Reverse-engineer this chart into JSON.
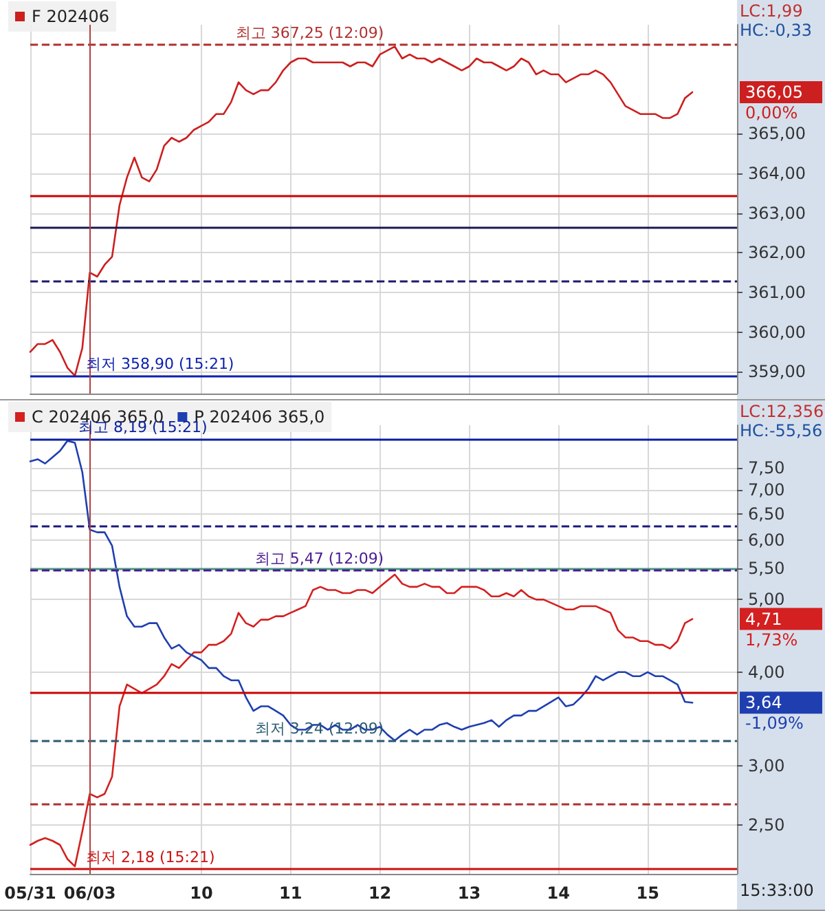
{
  "chart_data": [
    {
      "type": "line",
      "categories": [
        "05/31",
        null,
        null,
        null,
        null,
        null,
        null,
        null,
        "06/03",
        null,
        null,
        null,
        null,
        null,
        null,
        null,
        null,
        null,
        null,
        null,
        null,
        null,
        null,
        "10",
        null,
        null,
        null,
        null,
        null,
        null,
        null,
        null,
        null,
        null,
        null,
        "11",
        null,
        null,
        null,
        null,
        null,
        null,
        null,
        null,
        null,
        null,
        null,
        "12",
        null,
        null,
        null,
        null,
        null,
        null,
        null,
        null,
        null,
        null,
        null,
        "13",
        null,
        null,
        null,
        null,
        null,
        null,
        null,
        null,
        null,
        null,
        null,
        "14",
        null,
        null,
        null,
        null,
        null,
        null,
        null,
        null,
        null,
        null,
        null,
        "15",
        null,
        null,
        null,
        null,
        null,
        null,
        null,
        null,
        null,
        null,
        null,
        null
      ],
      "series": [
        {
          "name": "F 202406",
          "color": "#cc1f1f",
          "values": [
            359.5,
            359.7,
            359.7,
            359.8,
            359.5,
            359.1,
            358.9,
            359.6,
            361.5,
            361.4,
            361.7,
            361.9,
            363.2,
            363.9,
            364.4,
            363.9,
            363.8,
            364.1,
            364.7,
            364.9,
            364.8,
            364.9,
            365.1,
            365.2,
            365.3,
            365.5,
            365.5,
            365.8,
            366.3,
            366.1,
            366.0,
            366.1,
            366.1,
            366.3,
            366.6,
            366.8,
            366.9,
            366.9,
            366.8,
            366.8,
            366.8,
            366.8,
            366.8,
            366.7,
            366.8,
            366.8,
            366.7,
            367.0,
            367.1,
            367.2,
            366.9,
            367.0,
            366.9,
            366.9,
            366.8,
            366.9,
            366.8,
            366.7,
            366.6,
            366.7,
            366.9,
            366.8,
            366.8,
            366.7,
            366.6,
            366.7,
            366.9,
            366.8,
            366.5,
            366.6,
            366.5,
            366.5,
            366.3,
            366.4,
            366.5,
            366.5,
            366.6,
            366.5,
            366.3,
            366.0,
            365.7,
            365.6,
            365.5,
            365.5,
            365.5,
            365.4,
            365.4,
            365.5,
            365.9,
            366.05,
            null,
            null,
            null,
            null,
            null,
            null
          ]
        }
      ],
      "ylim": [
        358.45,
        367.75
      ],
      "yticks": [
        {
          "value": 359,
          "label": "359,00"
        },
        {
          "value": 360,
          "label": "360,00"
        },
        {
          "value": 361,
          "label": "361,00"
        },
        {
          "value": 362,
          "label": "362,00"
        },
        {
          "value": 363,
          "label": "363,00"
        },
        {
          "value": 364,
          "label": "364,00"
        },
        {
          "value": 365,
          "label": "365,00"
        }
      ],
      "tick_labels": "y",
      "grid": true,
      "legend": "top left",
      "marker": "none",
      "line_style": "solid",
      "ref_lines": [
        {
          "axis": "y",
          "value": 367.25,
          "label": "최고 367,25 (12:09)",
          "color": "#b03030",
          "line_style": "dashed"
        },
        {
          "axis": "y",
          "value": 363.45,
          "color": "#cc0000",
          "line_style": "solid"
        },
        {
          "axis": "y",
          "value": 362.65,
          "color": "#1a1a50",
          "line_style": "solid"
        },
        {
          "axis": "y",
          "value": 361.3,
          "color": "#1a1a70",
          "line_style": "dashed"
        },
        {
          "axis": "y",
          "value": 358.9,
          "label": "최저 358,90 (15:21)",
          "color": "#0a1fb0",
          "line_style": "solid"
        },
        {
          "axis": "x",
          "value": "06/03",
          "color": "#b04040",
          "line_style": "solid"
        }
      ],
      "annotations": [
        "LC:1,99",
        "HC:-0,33",
        "366,05",
        "0,00%"
      ]
    },
    {
      "type": "line",
      "categories": [
        "05/31",
        null,
        null,
        null,
        null,
        null,
        null,
        null,
        "06/03",
        null,
        null,
        null,
        null,
        null,
        null,
        null,
        null,
        null,
        null,
        null,
        null,
        null,
        null,
        "10",
        null,
        null,
        null,
        null,
        null,
        null,
        null,
        null,
        null,
        null,
        null,
        "11",
        null,
        null,
        null,
        null,
        null,
        null,
        null,
        null,
        null,
        null,
        null,
        "12",
        null,
        null,
        null,
        null,
        null,
        null,
        null,
        null,
        null,
        null,
        null,
        "13",
        null,
        null,
        null,
        null,
        null,
        null,
        null,
        null,
        null,
        null,
        null,
        "14",
        null,
        null,
        null,
        null,
        null,
        null,
        null,
        null,
        null,
        null,
        null,
        "15",
        null,
        null,
        null,
        null,
        null,
        null,
        null,
        null,
        null,
        null,
        null,
        null
      ],
      "series": [
        {
          "name": "C 202406 365,0",
          "color": "#d42020",
          "values": [
            2.35,
            2.38,
            2.4,
            2.38,
            2.35,
            2.25,
            2.2,
            2.45,
            2.75,
            2.72,
            2.75,
            2.9,
            3.6,
            3.85,
            3.8,
            3.75,
            3.8,
            3.85,
            3.95,
            4.1,
            4.05,
            4.15,
            4.25,
            4.25,
            4.35,
            4.35,
            4.4,
            4.5,
            4.8,
            4.65,
            4.6,
            4.7,
            4.7,
            4.75,
            4.75,
            4.8,
            4.85,
            4.9,
            5.15,
            5.2,
            5.15,
            5.15,
            5.1,
            5.1,
            5.15,
            5.15,
            5.1,
            5.2,
            5.3,
            5.4,
            5.25,
            5.2,
            5.2,
            5.25,
            5.2,
            5.2,
            5.1,
            5.1,
            5.2,
            5.2,
            5.2,
            5.15,
            5.05,
            5.05,
            5.1,
            5.05,
            5.15,
            5.05,
            5.0,
            5.0,
            4.95,
            4.9,
            4.85,
            4.85,
            4.9,
            4.9,
            4.9,
            4.85,
            4.8,
            4.55,
            4.45,
            4.45,
            4.4,
            4.4,
            4.35,
            4.35,
            4.3,
            4.4,
            4.65,
            4.71,
            null,
            null,
            null,
            null,
            null,
            null
          ]
        },
        {
          "name": "P 202406 365,0",
          "color": "#1f3fb0",
          "values": [
            7.65,
            7.7,
            7.6,
            7.75,
            7.9,
            8.15,
            8.1,
            7.4,
            6.2,
            6.15,
            6.15,
            5.9,
            5.2,
            4.75,
            4.6,
            4.6,
            4.65,
            4.65,
            4.45,
            4.3,
            4.35,
            4.25,
            4.2,
            4.15,
            4.05,
            4.05,
            3.95,
            3.9,
            3.9,
            3.7,
            3.55,
            3.6,
            3.6,
            3.55,
            3.5,
            3.4,
            3.35,
            3.35,
            3.4,
            3.4,
            3.35,
            3.4,
            3.35,
            3.35,
            3.4,
            3.35,
            3.35,
            3.38,
            3.3,
            3.24,
            3.3,
            3.35,
            3.3,
            3.35,
            3.35,
            3.4,
            3.42,
            3.38,
            3.35,
            3.38,
            3.4,
            3.42,
            3.45,
            3.38,
            3.45,
            3.5,
            3.5,
            3.55,
            3.55,
            3.6,
            3.65,
            3.7,
            3.6,
            3.62,
            3.7,
            3.8,
            3.95,
            3.9,
            3.95,
            4.0,
            4.0,
            3.95,
            3.95,
            4.0,
            3.95,
            3.95,
            3.9,
            3.85,
            3.65,
            3.64,
            null,
            null,
            null,
            null,
            null,
            null
          ]
        }
      ],
      "ylim": [
        2.15,
        8.55
      ],
      "log": "y",
      "yticks": [
        {
          "value": 2.5,
          "label": "2,50"
        },
        {
          "value": 3,
          "label": "3,00"
        },
        {
          "value": 4,
          "label": "4,00"
        },
        {
          "value": 5,
          "label": "5,00"
        },
        {
          "value": 5.5,
          "label": "5,50"
        },
        {
          "value": 6,
          "label": "6,00"
        },
        {
          "value": 6.5,
          "label": "6,50"
        },
        {
          "value": 7,
          "label": "7,00"
        },
        {
          "value": 7.5,
          "label": "7,50"
        }
      ],
      "grid": true,
      "legend": "top left",
      "marker": "none",
      "line_style": "solid",
      "ref_lines": [
        {
          "axis": "y",
          "value": 8.19,
          "label": "최고 8,19 (15:21)",
          "color": "#0a1fa0",
          "line_style": "solid"
        },
        {
          "axis": "y",
          "value": 6.28,
          "color": "#1a1a80",
          "line_style": "dashed"
        },
        {
          "axis": "y",
          "value": 5.5,
          "color": "#4a9a80",
          "line_style": "solid"
        },
        {
          "axis": "y",
          "value": 5.47,
          "label": "최고 5,47 (12:09)",
          "color": "#4a1a90",
          "line_style": "dashed"
        },
        {
          "axis": "y",
          "value": 3.76,
          "color": "#cc0000",
          "line_style": "solid"
        },
        {
          "axis": "y",
          "value": 3.24,
          "label": "최저 3,24 (12:09)",
          "color": "#2a5a70",
          "line_style": "dashed"
        },
        {
          "axis": "y",
          "value": 2.67,
          "color": "#b03030",
          "line_style": "dashed"
        },
        {
          "axis": "y",
          "value": 2.18,
          "label": "최저 2,18 (15:21)",
          "color": "#cc1010",
          "line_style": "solid"
        },
        {
          "axis": "x",
          "value": "06/03",
          "color": "#b04040",
          "line_style": "solid"
        }
      ],
      "annotations": [
        "LC:12,356",
        "HC:-55,56",
        "4,71",
        "1,73%",
        "3,64",
        "-1,09%",
        "15:33:00"
      ]
    }
  ]
}
